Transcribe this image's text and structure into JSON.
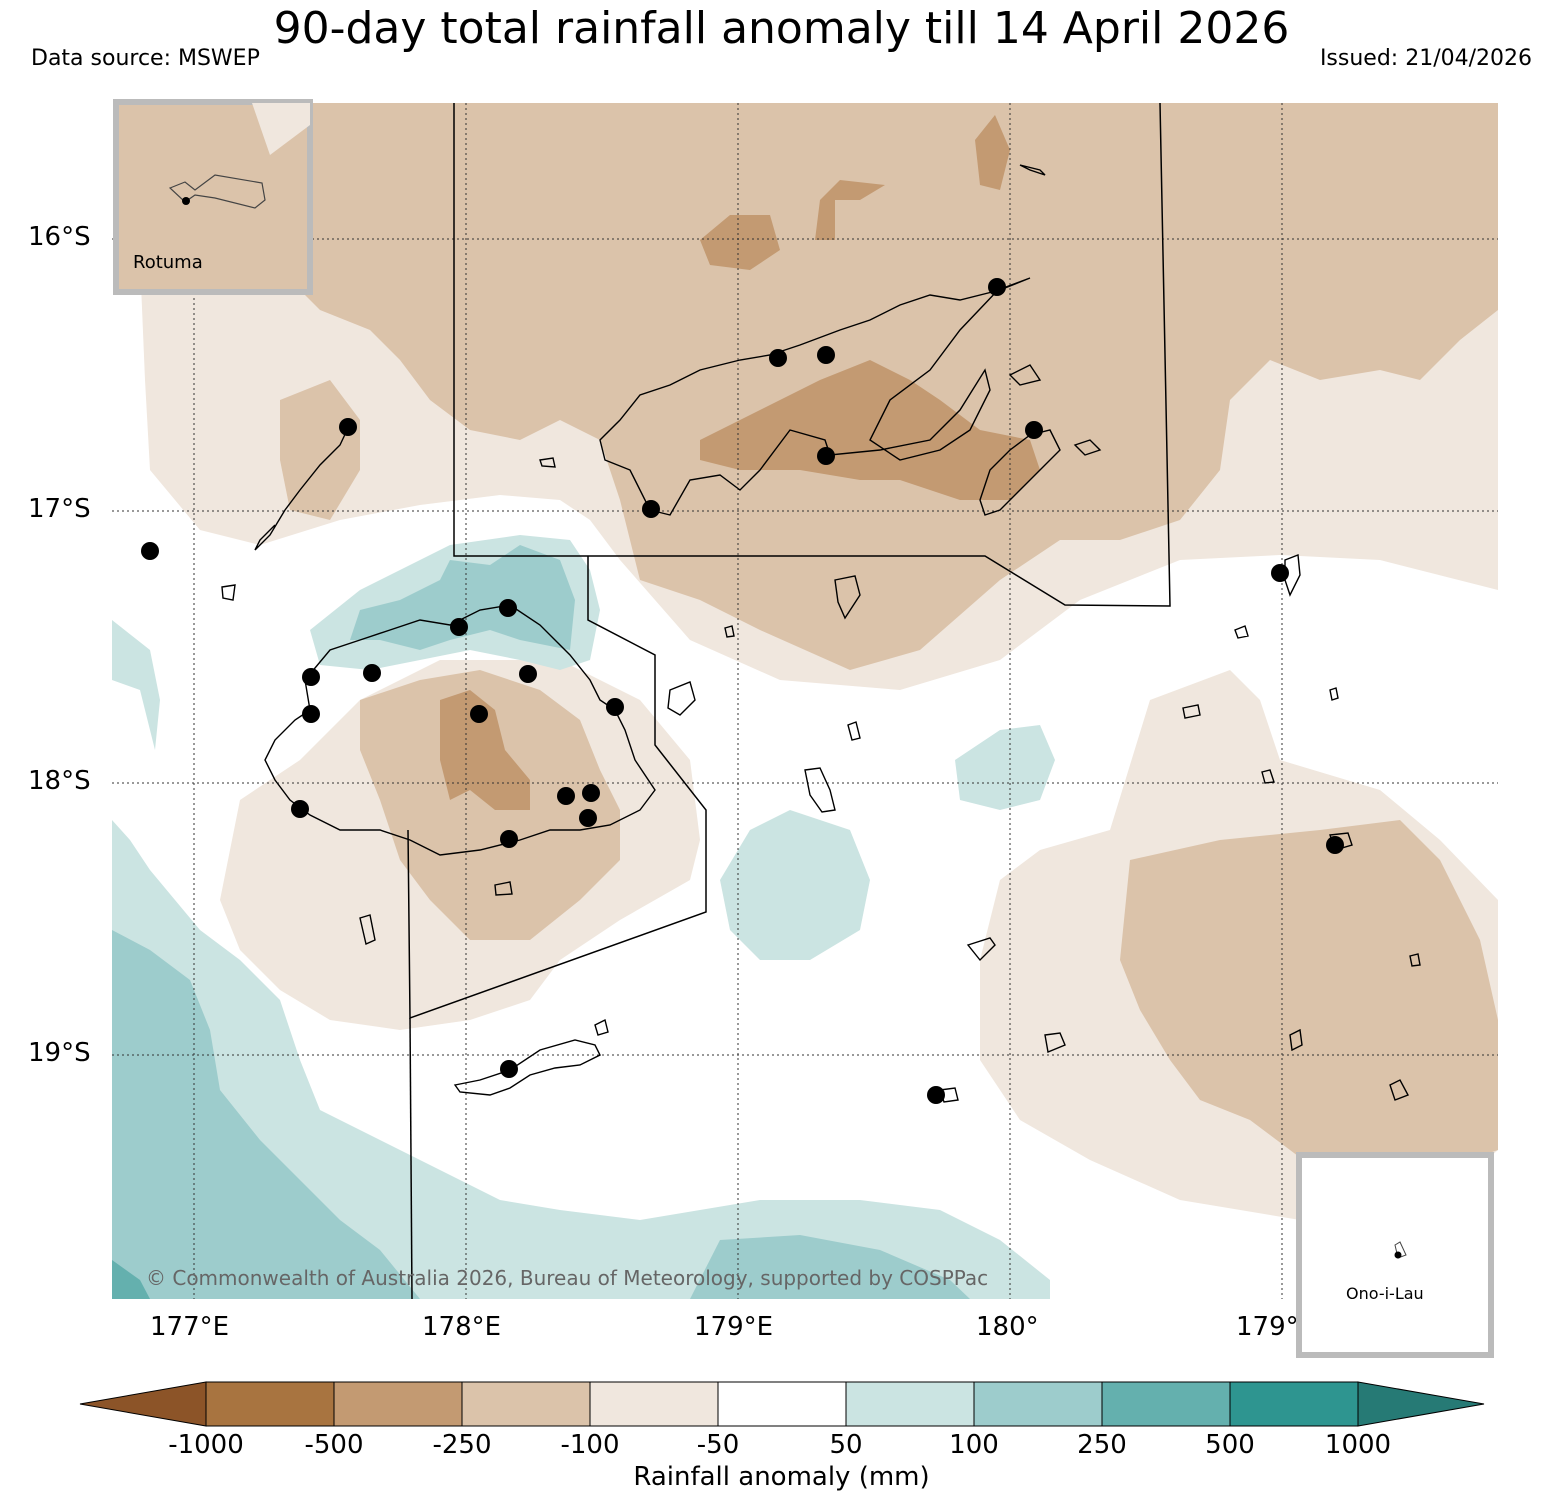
{
  "header": {
    "title": "90-day total rainfall anomaly till 14 April 2026",
    "data_source": "Data source: MSWEP",
    "issued": "Issued: 21/04/2026"
  },
  "axes": {
    "lat_labels": [
      "16°S",
      "17°S",
      "18°S",
      "19°S"
    ],
    "lon_labels": [
      "177°E",
      "178°E",
      "179°E",
      "180°",
      "179°"
    ]
  },
  "insets": {
    "rotuma": "Rotuma",
    "ono_i_lau": "Ono-i-Lau"
  },
  "copyright": "© Commonwealth of Australia 2026, Bureau of Meteorology, supported by COSPPac",
  "colorbar": {
    "title": "Rainfall anomaly (mm)",
    "labels": [
      "-1000",
      "-500",
      "-250",
      "-100",
      "-50",
      "50",
      "100",
      "250",
      "500",
      "1000"
    ],
    "colors": [
      "#8c5428",
      "#a87440",
      "#c39a72",
      "#dbc3aa",
      "#f0e7de",
      "#ffffff",
      "#cbe4e2",
      "#9dcccc",
      "#64b0ae",
      "#2e9590",
      "#267a75"
    ]
  },
  "legend_colors": {
    "brown_light": "#f0e7de",
    "brown_mid": "#dbc3aa",
    "brown_dark": "#c39a72",
    "teal_light": "#cbe4e2",
    "teal_mid": "#9dcccc"
  }
}
